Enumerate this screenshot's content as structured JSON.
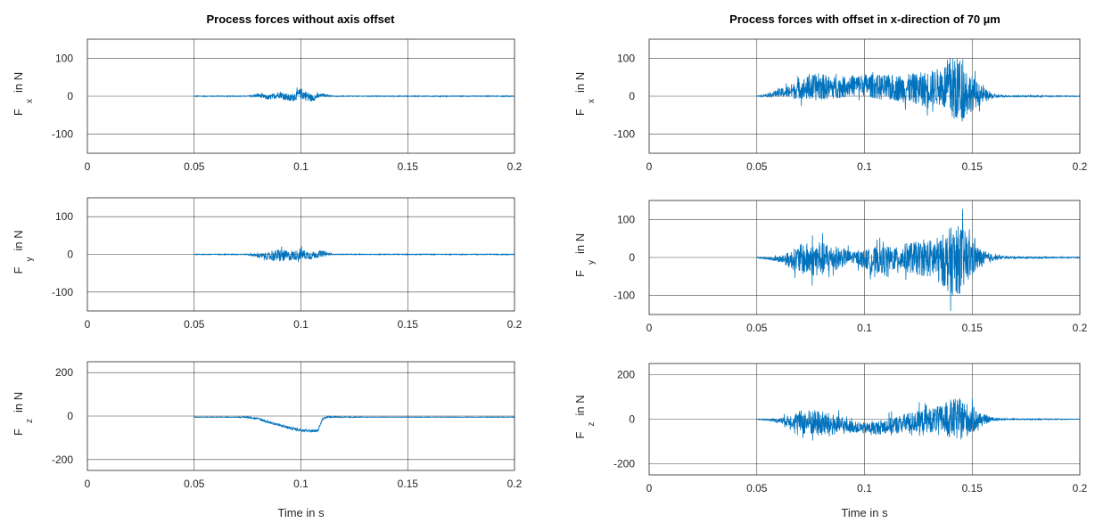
{
  "chart_data": [
    {
      "type": "line",
      "column": "left",
      "row": 0,
      "title": "Process forces without axis offset",
      "ylabel_main": "F",
      "ylabel_sub": "x",
      "ylabel_unit": "in N",
      "xlabel": "",
      "xlim": [
        0,
        0.2
      ],
      "ylim": [
        -150,
        150
      ],
      "xticks": [
        0,
        0.05,
        0.1,
        0.15,
        0.2
      ],
      "xtick_labels": [
        "0",
        "0.05",
        "0.1",
        "0.15",
        "0.2"
      ],
      "yticks": [
        100,
        0,
        -100
      ],
      "ytick_labels": [
        "100",
        "0",
        "-100"
      ],
      "grid": true,
      "color": "#0072BD",
      "x": [
        0.05,
        0.075,
        0.08,
        0.085,
        0.09,
        0.095,
        0.1,
        0.105,
        0.11,
        0.115,
        0.12,
        0.2
      ],
      "y": [
        0,
        0,
        2,
        -4,
        5,
        -6,
        8,
        -5,
        3,
        0,
        0,
        0
      ],
      "envelope": [
        1,
        1,
        5,
        7,
        9,
        10,
        14,
        10,
        4,
        1,
        1,
        1
      ]
    },
    {
      "type": "line",
      "column": "left",
      "row": 1,
      "title": "",
      "ylabel_main": "F",
      "ylabel_sub": "y",
      "ylabel_unit": "in N",
      "xlabel": "",
      "xlim": [
        0,
        0.2
      ],
      "ylim": [
        -150,
        150
      ],
      "xticks": [
        0,
        0.05,
        0.1,
        0.15,
        0.2
      ],
      "xtick_labels": [
        "0",
        "0.05",
        "0.1",
        "0.15",
        "0.2"
      ],
      "yticks": [
        100,
        0,
        -100
      ],
      "ytick_labels": [
        "100",
        "0",
        "-100"
      ],
      "grid": true,
      "color": "#0072BD",
      "x": [
        0.05,
        0.075,
        0.08,
        0.085,
        0.09,
        0.095,
        0.1,
        0.105,
        0.11,
        0.115,
        0.2
      ],
      "y": [
        0,
        0,
        -3,
        -6,
        -2,
        -5,
        0,
        -3,
        2,
        0,
        0
      ],
      "envelope": [
        1,
        1,
        6,
        10,
        18,
        12,
        14,
        10,
        8,
        1,
        1
      ]
    },
    {
      "type": "line",
      "column": "left",
      "row": 2,
      "title": "",
      "ylabel_main": "F",
      "ylabel_sub": "z",
      "ylabel_unit": "in N",
      "xlabel": "Time in s",
      "xlim": [
        0,
        0.2
      ],
      "ylim": [
        -250,
        250
      ],
      "xticks": [
        0,
        0.05,
        0.1,
        0.15,
        0.2
      ],
      "xtick_labels": [
        "0",
        "0.05",
        "0.1",
        "0.15",
        "0.2"
      ],
      "yticks": [
        200,
        0,
        -200
      ],
      "ytick_labels": [
        "200",
        "0",
        "-200"
      ],
      "grid": true,
      "color": "#0072BD",
      "x": [
        0.05,
        0.07,
        0.075,
        0.08,
        0.085,
        0.09,
        0.095,
        0.1,
        0.105,
        0.108,
        0.11,
        0.112,
        0.12,
        0.13,
        0.2
      ],
      "y": [
        -5,
        -5,
        -5,
        -12,
        -28,
        -42,
        -55,
        -64,
        -68,
        -68,
        -15,
        -3,
        -5,
        -5,
        -5
      ],
      "envelope": [
        1,
        1,
        3,
        4,
        5,
        6,
        6,
        6,
        6,
        5,
        4,
        4,
        2,
        1,
        1
      ]
    },
    {
      "type": "line",
      "column": "right",
      "row": 0,
      "title": "Process forces with offset in x-direction of 70 µm",
      "ylabel_main": "F",
      "ylabel_sub": "x",
      "ylabel_unit": "in N",
      "xlabel": "",
      "xlim": [
        0,
        0.2
      ],
      "ylim": [
        -150,
        150
      ],
      "xticks": [
        0,
        0.05,
        0.1,
        0.15,
        0.2
      ],
      "xtick_labels": [
        "0",
        "0.05",
        "0.1",
        "0.15",
        "0.2"
      ],
      "yticks": [
        100,
        0,
        -100
      ],
      "ytick_labels": [
        "100",
        "0",
        "-100"
      ],
      "grid": true,
      "color": "#0072BD",
      "x": [
        0.05,
        0.055,
        0.06,
        0.065,
        0.07,
        0.075,
        0.08,
        0.085,
        0.09,
        0.095,
        0.1,
        0.105,
        0.11,
        0.115,
        0.12,
        0.125,
        0.13,
        0.135,
        0.14,
        0.145,
        0.15,
        0.155,
        0.16,
        0.165,
        0.2
      ],
      "y": [
        0,
        3,
        8,
        12,
        18,
        22,
        25,
        22,
        25,
        30,
        30,
        25,
        22,
        22,
        20,
        20,
        22,
        25,
        22,
        15,
        8,
        2,
        0,
        0,
        0
      ],
      "envelope": [
        1,
        5,
        10,
        18,
        25,
        35,
        35,
        30,
        28,
        25,
        30,
        32,
        35,
        35,
        38,
        42,
        45,
        50,
        85,
        85,
        45,
        20,
        6,
        2,
        1
      ]
    },
    {
      "type": "line",
      "column": "right",
      "row": 1,
      "title": "",
      "ylabel_main": "F",
      "ylabel_sub": "y",
      "ylabel_unit": "in N",
      "xlabel": "",
      "xlim": [
        0,
        0.2
      ],
      "ylim": [
        -150,
        150
      ],
      "xticks": [
        0,
        0.05,
        0.1,
        0.15,
        0.2
      ],
      "xtick_labels": [
        "0",
        "0.05",
        "0.1",
        "0.15",
        "0.2"
      ],
      "yticks": [
        100,
        0,
        -100
      ],
      "ytick_labels": [
        "100",
        "0",
        "-100"
      ],
      "grid": true,
      "color": "#0072BD",
      "x": [
        0.05,
        0.055,
        0.06,
        0.065,
        0.07,
        0.075,
        0.08,
        0.085,
        0.09,
        0.095,
        0.1,
        0.105,
        0.11,
        0.115,
        0.12,
        0.125,
        0.13,
        0.135,
        0.14,
        0.145,
        0.15,
        0.155,
        0.16,
        0.165,
        0.2
      ],
      "y": [
        0,
        -2,
        -4,
        -5,
        -5,
        -5,
        -5,
        -2,
        0,
        0,
        -5,
        -8,
        -5,
        -3,
        0,
        -2,
        -3,
        -5,
        -10,
        -5,
        -3,
        -2,
        0,
        0,
        0
      ],
      "envelope": [
        1,
        3,
        8,
        20,
        40,
        45,
        45,
        35,
        25,
        15,
        25,
        35,
        35,
        30,
        40,
        45,
        50,
        60,
        90,
        90,
        45,
        20,
        8,
        3,
        1
      ]
    },
    {
      "type": "line",
      "column": "right",
      "row": 2,
      "title": "",
      "ylabel_main": "F",
      "ylabel_sub": "z",
      "ylabel_unit": "in N",
      "xlabel": "Time in s",
      "xlim": [
        0,
        0.2
      ],
      "ylim": [
        -250,
        250
      ],
      "xticks": [
        0,
        0.05,
        0.1,
        0.15,
        0.2
      ],
      "xtick_labels": [
        "0",
        "0.05",
        "0.1",
        "0.15",
        "0.2"
      ],
      "yticks": [
        200,
        0,
        -200
      ],
      "ytick_labels": [
        "200",
        "0",
        "-200"
      ],
      "grid": true,
      "color": "#0072BD",
      "x": [
        0.05,
        0.055,
        0.06,
        0.065,
        0.07,
        0.075,
        0.08,
        0.085,
        0.09,
        0.095,
        0.1,
        0.105,
        0.11,
        0.115,
        0.12,
        0.125,
        0.13,
        0.135,
        0.14,
        0.145,
        0.15,
        0.155,
        0.16,
        0.165,
        0.2
      ],
      "y": [
        0,
        -2,
        -5,
        -8,
        -10,
        -15,
        -20,
        -25,
        -30,
        -35,
        -40,
        -40,
        -30,
        -25,
        -15,
        -10,
        -5,
        0,
        0,
        0,
        -5,
        -2,
        0,
        0,
        0
      ],
      "envelope": [
        1,
        3,
        10,
        25,
        50,
        60,
        60,
        50,
        35,
        25,
        25,
        30,
        35,
        40,
        45,
        50,
        55,
        60,
        90,
        95,
        60,
        25,
        8,
        3,
        1
      ]
    }
  ]
}
